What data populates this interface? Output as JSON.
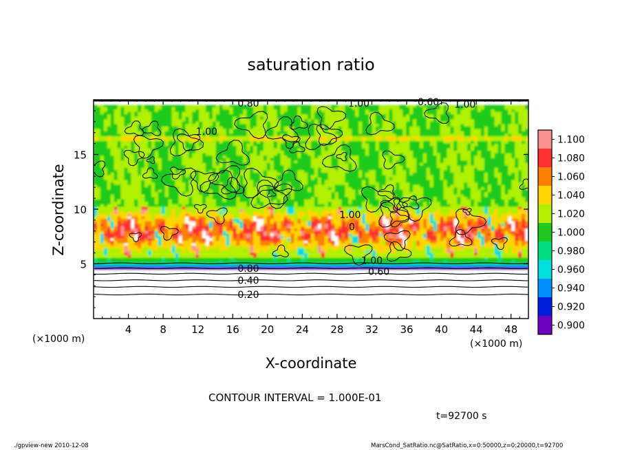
{
  "chart_data": {
    "type": "heatmap",
    "title": "saturation ratio",
    "xlabel": "X-coordinate",
    "ylabel": "Z-coordinate",
    "x_unit_left": "(×1000 m)",
    "x_unit_right": "(×1000 m)",
    "xlim": [
      0,
      50
    ],
    "ylim": [
      0,
      20
    ],
    "xticks": [
      4,
      8,
      12,
      16,
      20,
      24,
      28,
      32,
      36,
      40,
      44,
      48
    ],
    "yticks": [
      5,
      10,
      15
    ],
    "colorbar": {
      "levels": [
        1.1,
        1.08,
        1.06,
        1.04,
        1.02,
        1.0,
        0.98,
        0.96,
        0.94,
        0.92,
        0.9
      ],
      "labels": [
        "1.100",
        "1.080",
        "1.060",
        "1.040",
        "1.020",
        "1.000",
        "0.980",
        "0.960",
        "0.940",
        "0.920",
        "0.900"
      ],
      "colors": [
        "#ff9090",
        "#ff3030",
        "#ff7f00",
        "#ffd400",
        "#b0f000",
        "#1ecb1e",
        "#00e080",
        "#00e0e0",
        "#0090ff",
        "#0020e0",
        "#7000c0"
      ]
    },
    "contour_labels": [
      {
        "text": "0.80",
        "x": 17.8,
        "z": 19.7
      },
      {
        "text": "1.00",
        "x": 30.5,
        "z": 19.7
      },
      {
        "text": "0.60",
        "x": 38.5,
        "z": 19.8
      },
      {
        "text": "1.00",
        "x": 42.7,
        "z": 19.6
      },
      {
        "text": "1.00",
        "x": 13.0,
        "z": 17.1
      },
      {
        "text": "1.00",
        "x": 29.5,
        "z": 9.5
      },
      {
        "text": "0",
        "x": 29.7,
        "z": 8.4
      },
      {
        "text": "1.00",
        "x": 32.0,
        "z": 5.3
      },
      {
        "text": "0.60",
        "x": 32.8,
        "z": 4.3
      },
      {
        "text": "0.80",
        "x": 17.8,
        "z": 4.6
      },
      {
        "text": "0.40",
        "x": 17.8,
        "z": 3.5
      },
      {
        "text": "0.20",
        "x": 17.8,
        "z": 2.2
      }
    ],
    "annotations": {
      "contour_interval": "CONTOUR INTERVAL = 1.000E-01",
      "time": "t=92700 s",
      "footer_left": "./gpview-new  2010-12-08",
      "footer_right": "MarsCond_SatRatio.nc@SatRatio,x=0:50000,z=0:20000,t=92700"
    }
  }
}
